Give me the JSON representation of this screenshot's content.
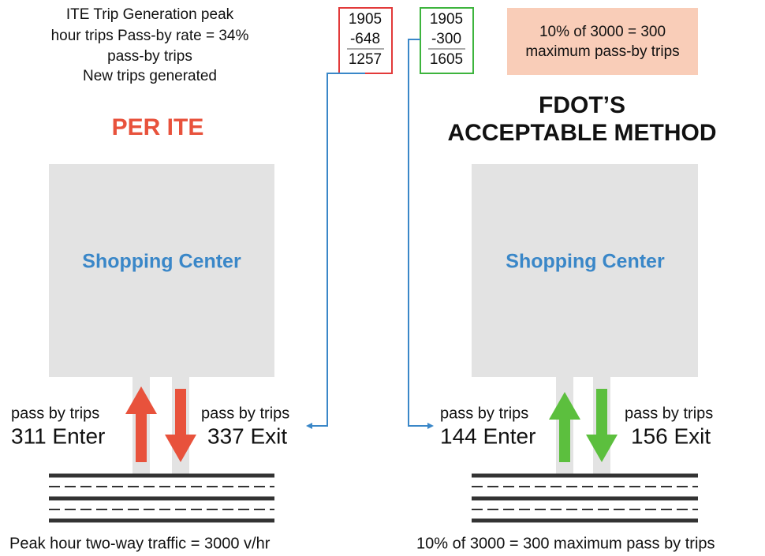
{
  "notes": [
    "ITE Trip Generation peak",
    "hour trips Pass-by rate = 34%",
    "pass-by trips",
    "New trips generated"
  ],
  "ite_calc": [
    "1905",
    "-648",
    "1257"
  ],
  "fdot_calc": [
    "1905",
    "-300",
    "1605"
  ],
  "fdot_note": [
    "10% of 3000 = 300",
    "maximum pass-by trips"
  ],
  "left": {
    "title": "PER ITE",
    "building": "Shopping Center",
    "enter_label": "pass by trips",
    "enter_value": "311 Enter",
    "exit_label": "pass by trips",
    "exit_value": "337 Exit",
    "footer": "Peak hour two-way traffic = 3000 v/hr"
  },
  "right": {
    "title": [
      "FDOT’S",
      "ACCEPTABLE METHOD"
    ],
    "building": "Shopping Center",
    "enter_label": "pass by trips",
    "enter_value": "144 Enter",
    "exit_label": "pass by trips",
    "exit_value": "156 Exit",
    "footer": "10% of 3000 = 300 maximum pass by trips"
  }
}
